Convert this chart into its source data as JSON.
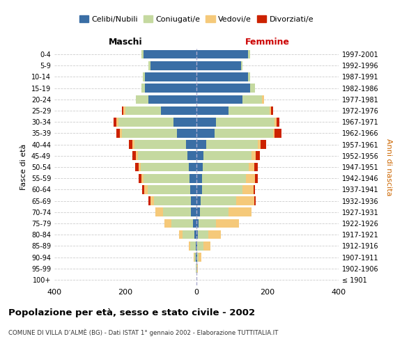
{
  "age_groups": [
    "100+",
    "95-99",
    "90-94",
    "85-89",
    "80-84",
    "75-79",
    "70-74",
    "65-69",
    "60-64",
    "55-59",
    "50-54",
    "45-49",
    "40-44",
    "35-39",
    "30-34",
    "25-29",
    "20-24",
    "15-19",
    "10-14",
    "5-9",
    "0-4"
  ],
  "birth_years": [
    "≤ 1901",
    "1902-1906",
    "1907-1911",
    "1912-1916",
    "1917-1921",
    "1922-1926",
    "1927-1931",
    "1932-1936",
    "1937-1941",
    "1942-1946",
    "1947-1951",
    "1952-1956",
    "1957-1961",
    "1962-1966",
    "1967-1971",
    "1972-1976",
    "1977-1981",
    "1982-1986",
    "1987-1991",
    "1992-1996",
    "1997-2001"
  ],
  "male": {
    "celibi": [
      0,
      0,
      1,
      2,
      5,
      10,
      15,
      15,
      18,
      20,
      22,
      25,
      30,
      55,
      65,
      100,
      135,
      145,
      145,
      130,
      150
    ],
    "coniugati": [
      0,
      2,
      5,
      15,
      35,
      60,
      80,
      105,
      120,
      130,
      135,
      140,
      145,
      155,
      155,
      100,
      35,
      10,
      5,
      5,
      5
    ],
    "vedovi": [
      0,
      0,
      2,
      5,
      10,
      20,
      20,
      10,
      10,
      5,
      5,
      5,
      5,
      5,
      5,
      5,
      0,
      0,
      0,
      0,
      0
    ],
    "divorziati": [
      0,
      0,
      0,
      0,
      0,
      0,
      0,
      5,
      5,
      8,
      10,
      10,
      10,
      10,
      8,
      5,
      0,
      0,
      0,
      0,
      0
    ]
  },
  "female": {
    "nubili": [
      0,
      0,
      1,
      2,
      3,
      5,
      10,
      12,
      15,
      15,
      18,
      20,
      28,
      50,
      55,
      90,
      130,
      150,
      145,
      125,
      145
    ],
    "coniugate": [
      0,
      2,
      5,
      18,
      30,
      50,
      80,
      100,
      115,
      125,
      130,
      135,
      145,
      165,
      165,
      115,
      55,
      15,
      5,
      5,
      5
    ],
    "vedove": [
      0,
      2,
      8,
      20,
      35,
      65,
      65,
      50,
      30,
      25,
      15,
      12,
      8,
      5,
      5,
      5,
      5,
      0,
      0,
      0,
      0
    ],
    "divorziate": [
      0,
      0,
      0,
      0,
      0,
      0,
      0,
      5,
      5,
      8,
      10,
      12,
      15,
      20,
      8,
      5,
      0,
      0,
      0,
      0,
      0
    ]
  },
  "colors": {
    "celibi": "#3a6ea5",
    "coniugati": "#c5d9a0",
    "vedovi": "#f5c97a",
    "divorziati": "#cc2200"
  },
  "xlim": 400,
  "title": "Popolazione per età, sesso e stato civile - 2002",
  "subtitle": "COMUNE DI VILLA D’ALMÈ (BG) - Dati ISTAT 1° gennaio 2002 - Elaborazione TUTTITALIA.IT",
  "ylabel_left": "Fasce di età",
  "ylabel_right": "Anni di nascita"
}
